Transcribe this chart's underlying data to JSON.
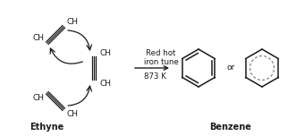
{
  "bg_color": "#ffffff",
  "text_color": "#1a1a1a",
  "ethyne_label": "Ethyne",
  "benzene_label": "Benzene",
  "reaction_line1": "Red hot",
  "reaction_line2": "iron tune",
  "reaction_line3": "873 K",
  "or_text": "or",
  "arrow_color": "#1a1a1a",
  "line_color": "#1a1a1a",
  "dashed_color": "#777777",
  "figsize": [
    3.31,
    1.52
  ],
  "dpi": 100
}
